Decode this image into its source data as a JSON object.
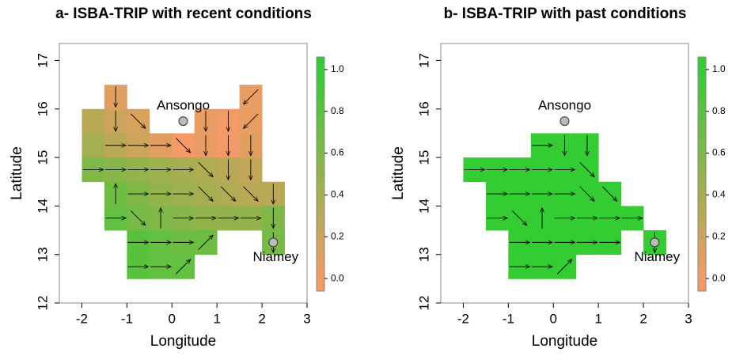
{
  "chart_data": [
    {
      "type": "grid",
      "title": "a- ISBA-TRIP with recent conditions",
      "xlabel": "Longitude",
      "ylabel": "Latitude",
      "xlim": [
        -2.5,
        3
      ],
      "ylim": [
        12,
        17.35
      ],
      "xticks": [
        -2,
        -1,
        0,
        1,
        2,
        3
      ],
      "yticks": [
        12,
        13,
        14,
        15,
        16,
        17
      ],
      "cell_size": 0.5,
      "cells": [
        {
          "x": -1.25,
          "y": 16.25,
          "value": 0.1,
          "dir": "S"
        },
        {
          "x": 1.75,
          "y": 16.25,
          "value": 0.05,
          "dir": "SW"
        },
        {
          "x": -1.75,
          "y": 15.75,
          "value": 0.3,
          "dir": null
        },
        {
          "x": -1.25,
          "y": 15.75,
          "value": 0.2,
          "dir": "S"
        },
        {
          "x": -0.75,
          "y": 15.75,
          "value": 0.15,
          "dir": "SE"
        },
        {
          "x": 0.75,
          "y": 15.75,
          "value": 0.05,
          "dir": "S"
        },
        {
          "x": 1.25,
          "y": 15.75,
          "value": 0.0,
          "dir": "S"
        },
        {
          "x": 1.75,
          "y": 15.75,
          "value": 0.05,
          "dir": "SW"
        },
        {
          "x": -1.75,
          "y": 15.25,
          "value": 0.4,
          "dir": null
        },
        {
          "x": -1.25,
          "y": 15.25,
          "value": 0.3,
          "dir": "E"
        },
        {
          "x": -0.75,
          "y": 15.25,
          "value": 0.2,
          "dir": "E"
        },
        {
          "x": -0.25,
          "y": 15.25,
          "value": 0.1,
          "dir": "E"
        },
        {
          "x": 0.25,
          "y": 15.25,
          "value": 0.0,
          "dir": "SE"
        },
        {
          "x": 0.75,
          "y": 15.25,
          "value": 0.05,
          "dir": "S"
        },
        {
          "x": 1.25,
          "y": 15.25,
          "value": 0.0,
          "dir": "S"
        },
        {
          "x": 1.75,
          "y": 15.25,
          "value": 0.1,
          "dir": "S"
        },
        {
          "x": -1.75,
          "y": 14.75,
          "value": 0.6,
          "dir": "E"
        },
        {
          "x": -1.25,
          "y": 14.75,
          "value": 0.55,
          "dir": "E"
        },
        {
          "x": -0.75,
          "y": 14.75,
          "value": 0.5,
          "dir": "E"
        },
        {
          "x": -0.25,
          "y": 14.75,
          "value": 0.45,
          "dir": "E"
        },
        {
          "x": 0.25,
          "y": 14.75,
          "value": 0.4,
          "dir": "E"
        },
        {
          "x": 0.75,
          "y": 14.75,
          "value": 0.35,
          "dir": "SE"
        },
        {
          "x": 1.25,
          "y": 14.75,
          "value": 0.3,
          "dir": "S"
        },
        {
          "x": 1.75,
          "y": 14.75,
          "value": 0.25,
          "dir": "S"
        },
        {
          "x": -1.25,
          "y": 14.25,
          "value": 0.7,
          "dir": "N"
        },
        {
          "x": -0.75,
          "y": 14.25,
          "value": 0.6,
          "dir": "E"
        },
        {
          "x": -0.25,
          "y": 14.25,
          "value": 0.5,
          "dir": "E"
        },
        {
          "x": 0.25,
          "y": 14.25,
          "value": 0.45,
          "dir": "E"
        },
        {
          "x": 0.75,
          "y": 14.25,
          "value": 0.4,
          "dir": "SE"
        },
        {
          "x": 1.25,
          "y": 14.25,
          "value": 0.35,
          "dir": "SE"
        },
        {
          "x": 1.75,
          "y": 14.25,
          "value": 0.3,
          "dir": "SE"
        },
        {
          "x": 2.25,
          "y": 14.25,
          "value": 0.3,
          "dir": "S"
        },
        {
          "x": -1.25,
          "y": 13.75,
          "value": 0.75,
          "dir": "E"
        },
        {
          "x": -0.75,
          "y": 13.75,
          "value": 0.65,
          "dir": "SE"
        },
        {
          "x": -0.25,
          "y": 13.75,
          "value": 0.6,
          "dir": "N"
        },
        {
          "x": 0.25,
          "y": 13.75,
          "value": 0.55,
          "dir": "E"
        },
        {
          "x": 0.75,
          "y": 13.75,
          "value": 0.5,
          "dir": "E"
        },
        {
          "x": 1.25,
          "y": 13.75,
          "value": 0.5,
          "dir": "E"
        },
        {
          "x": 1.75,
          "y": 13.75,
          "value": 0.5,
          "dir": "E"
        },
        {
          "x": 2.25,
          "y": 13.75,
          "value": 0.6,
          "dir": "S"
        },
        {
          "x": -0.75,
          "y": 13.25,
          "value": 0.8,
          "dir": "E"
        },
        {
          "x": -0.25,
          "y": 13.25,
          "value": 0.75,
          "dir": "E"
        },
        {
          "x": 0.25,
          "y": 13.25,
          "value": 0.7,
          "dir": "E"
        },
        {
          "x": 0.75,
          "y": 13.25,
          "value": 0.7,
          "dir": "NE"
        },
        {
          "x": 2.25,
          "y": 13.25,
          "value": 0.65,
          "dir": "S"
        },
        {
          "x": -0.75,
          "y": 12.75,
          "value": 0.8,
          "dir": "E"
        },
        {
          "x": -0.25,
          "y": 12.75,
          "value": 0.75,
          "dir": "E"
        },
        {
          "x": 0.25,
          "y": 12.75,
          "value": 0.75,
          "dir": "NE"
        }
      ],
      "points": [
        {
          "name": "Ansongo",
          "x": 0.25,
          "y": 15.75,
          "label_position": "above"
        },
        {
          "name": "Niamey",
          "x": 2.25,
          "y": 13.25,
          "label_position": "below"
        }
      ],
      "colorbar": {
        "lim": [
          -0.06,
          1.06
        ],
        "colors": [
          "#f39a66",
          "#33cc33"
        ],
        "ticks": [
          {
            "value": 0,
            "label": "0.0"
          },
          {
            "value": 0.2,
            "label": "0.2"
          },
          {
            "value": 0.4,
            "label": "0.4"
          },
          {
            "value": 0.6,
            "label": "0.6"
          },
          {
            "value": 0.8,
            "label": "0.8"
          },
          {
            "value": 1,
            "label": "1.0"
          }
        ]
      }
    },
    {
      "type": "grid",
      "title": "b- ISBA-TRIP with past conditions",
      "xlabel": "Longitude",
      "ylabel": "Latitude",
      "xlim": [
        -2.5,
        3
      ],
      "ylim": [
        12,
        17.35
      ],
      "xticks": [
        -2,
        -1,
        0,
        1,
        2,
        3
      ],
      "yticks": [
        12,
        13,
        14,
        15,
        16,
        17
      ],
      "cell_size": 0.5,
      "cells": [
        {
          "x": -0.25,
          "y": 15.25,
          "value": 1,
          "dir": "E"
        },
        {
          "x": 0.25,
          "y": 15.25,
          "value": 1,
          "dir": "S"
        },
        {
          "x": 0.75,
          "y": 15.25,
          "value": 1,
          "dir": "S"
        },
        {
          "x": -1.75,
          "y": 14.75,
          "value": 1,
          "dir": "E"
        },
        {
          "x": -1.25,
          "y": 14.75,
          "value": 1,
          "dir": "E"
        },
        {
          "x": -0.75,
          "y": 14.75,
          "value": 1,
          "dir": "E"
        },
        {
          "x": -0.25,
          "y": 14.75,
          "value": 1,
          "dir": "E"
        },
        {
          "x": 0.25,
          "y": 14.75,
          "value": 1,
          "dir": "E"
        },
        {
          "x": 0.75,
          "y": 14.75,
          "value": 1,
          "dir": "SE"
        },
        {
          "x": -1.25,
          "y": 14.25,
          "value": 1,
          "dir": "E"
        },
        {
          "x": -0.75,
          "y": 14.25,
          "value": 1,
          "dir": "E"
        },
        {
          "x": -0.25,
          "y": 14.25,
          "value": 1,
          "dir": "E"
        },
        {
          "x": 0.25,
          "y": 14.25,
          "value": 1,
          "dir": "E"
        },
        {
          "x": 0.75,
          "y": 14.25,
          "value": 1,
          "dir": "SE"
        },
        {
          "x": 1.25,
          "y": 14.25,
          "value": 1,
          "dir": "SE"
        },
        {
          "x": -1.25,
          "y": 13.75,
          "value": 1,
          "dir": "E"
        },
        {
          "x": -0.75,
          "y": 13.75,
          "value": 1,
          "dir": "SE"
        },
        {
          "x": -0.25,
          "y": 13.75,
          "value": 1,
          "dir": "N"
        },
        {
          "x": 0.25,
          "y": 13.75,
          "value": 1,
          "dir": "E"
        },
        {
          "x": 0.75,
          "y": 13.75,
          "value": 1,
          "dir": "E"
        },
        {
          "x": 1.25,
          "y": 13.75,
          "value": 1,
          "dir": "E"
        },
        {
          "x": 1.75,
          "y": 13.75,
          "value": 1,
          "dir": "E"
        },
        {
          "x": -0.75,
          "y": 13.25,
          "value": 1,
          "dir": "E"
        },
        {
          "x": -0.25,
          "y": 13.25,
          "value": 1,
          "dir": "E"
        },
        {
          "x": 0.25,
          "y": 13.25,
          "value": 1,
          "dir": "E"
        },
        {
          "x": 0.75,
          "y": 13.25,
          "value": 1,
          "dir": "E"
        },
        {
          "x": 1.25,
          "y": 13.25,
          "value": 1,
          "dir": "E"
        },
        {
          "x": 2.25,
          "y": 13.25,
          "value": 1,
          "dir": "S"
        },
        {
          "x": -0.75,
          "y": 12.75,
          "value": 1,
          "dir": "E"
        },
        {
          "x": -0.25,
          "y": 12.75,
          "value": 1,
          "dir": "E"
        },
        {
          "x": 0.25,
          "y": 12.75,
          "value": 1,
          "dir": "NE"
        }
      ],
      "points": [
        {
          "name": "Ansongo",
          "x": 0.25,
          "y": 15.75,
          "label_position": "above"
        },
        {
          "name": "Niamey",
          "x": 2.25,
          "y": 13.25,
          "label_position": "below"
        }
      ],
      "colorbar": {
        "lim": [
          -0.06,
          1.06
        ],
        "colors": [
          "#f39a66",
          "#33cc33"
        ],
        "ticks": [
          {
            "value": 0,
            "label": "0.0"
          },
          {
            "value": 0.2,
            "label": "0.2"
          },
          {
            "value": 0.4,
            "label": "0.4"
          },
          {
            "value": 0.6,
            "label": "0.6"
          },
          {
            "value": 0.8,
            "label": "0.8"
          },
          {
            "value": 1,
            "label": "1.0"
          }
        ]
      }
    }
  ]
}
